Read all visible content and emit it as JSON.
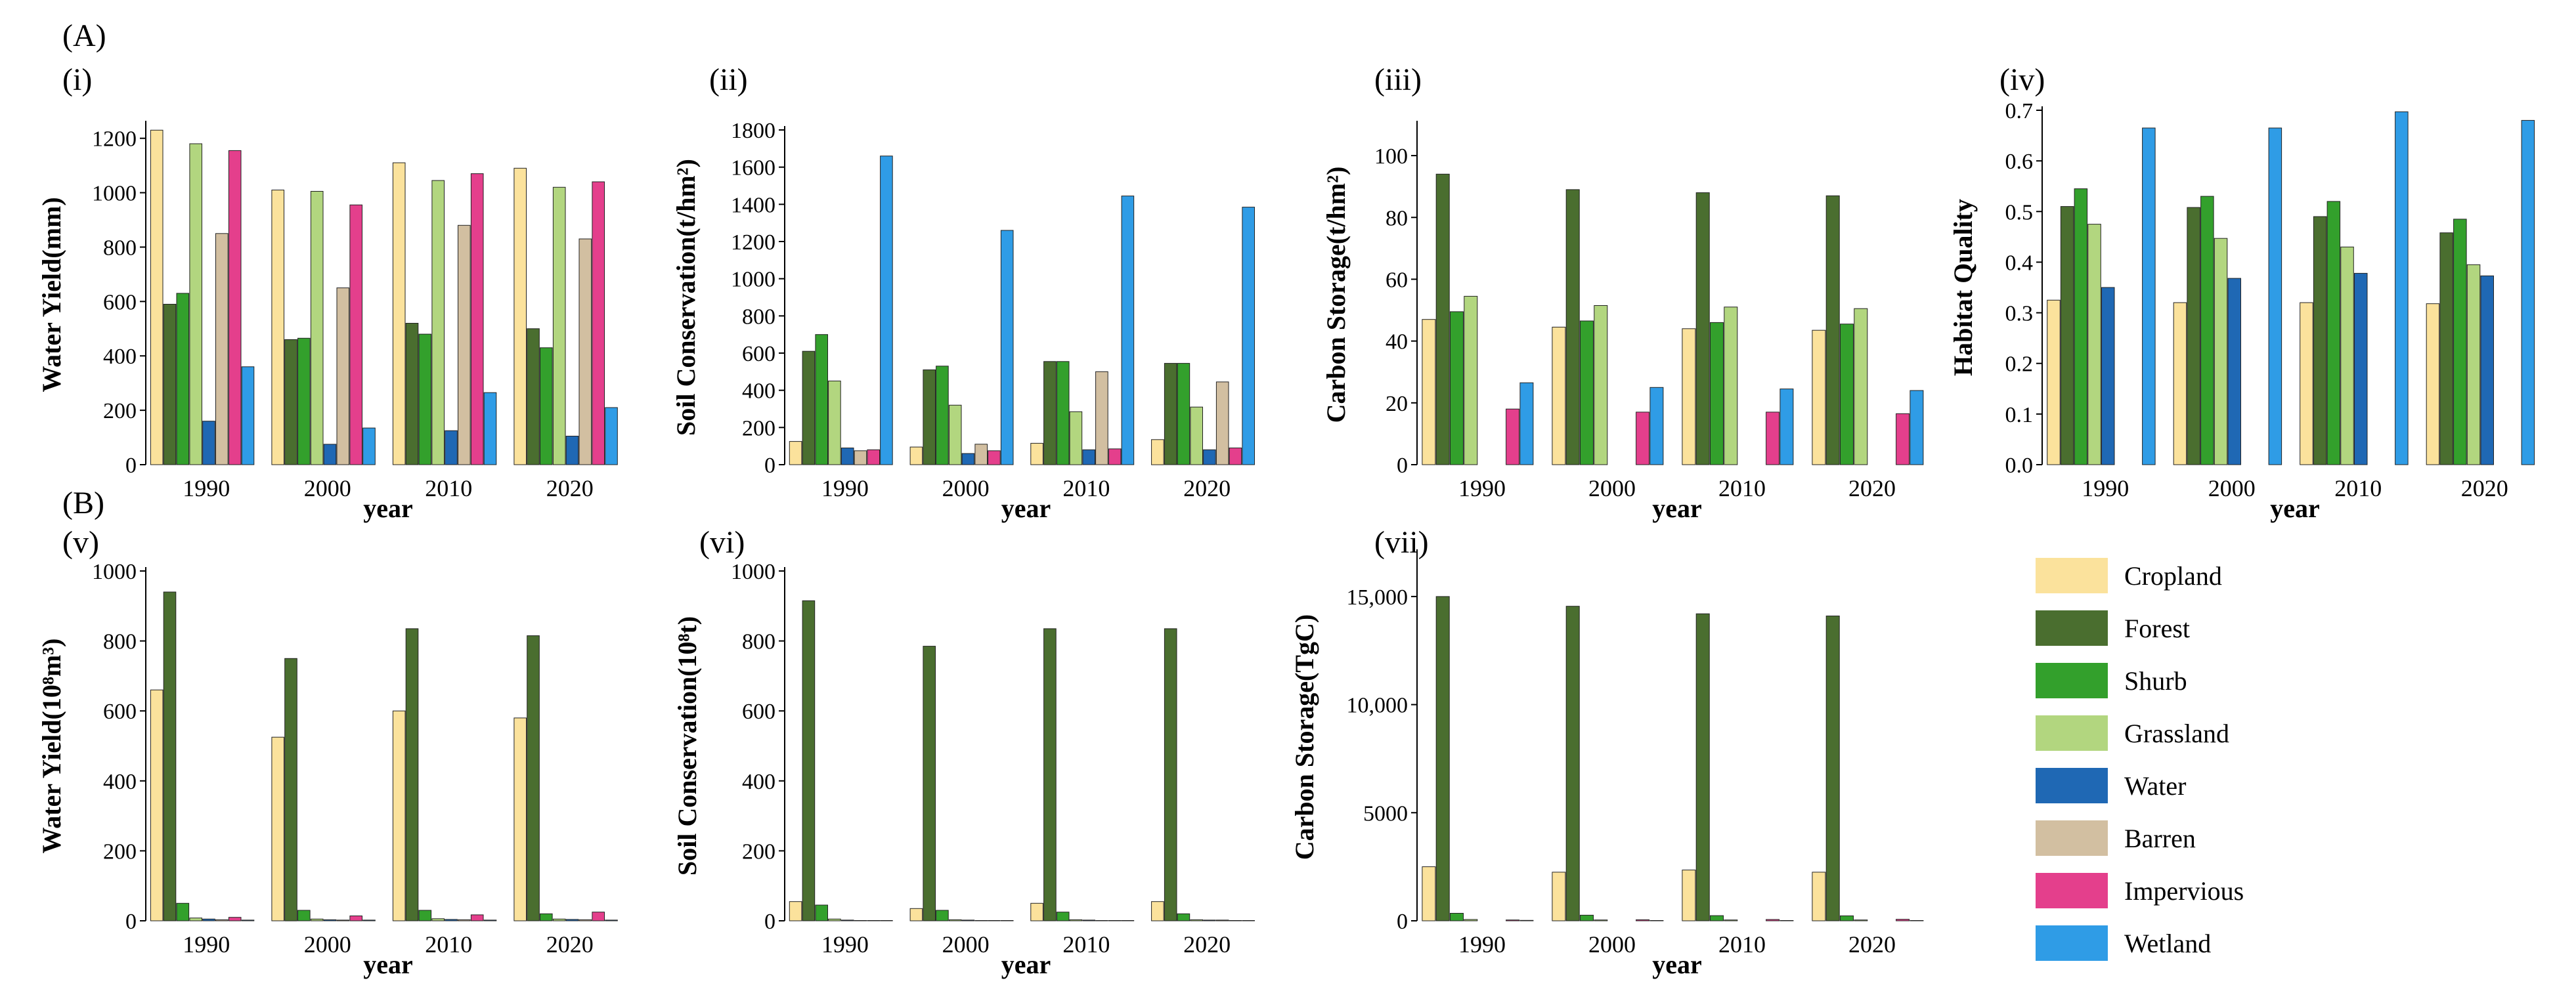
{
  "figure": {
    "section_a": "(A)",
    "section_b": "(B)"
  },
  "legend": [
    {
      "label": "Cropland",
      "color": "#fbe29c"
    },
    {
      "label": "Forest",
      "color": "#4a6e2f"
    },
    {
      "label": "Shurb",
      "color": "#33a02c"
    },
    {
      "label": "Grassland",
      "color": "#b2d67f"
    },
    {
      "label": "Water",
      "color": "#1f68b4"
    },
    {
      "label": "Barren",
      "color": "#d2bfa1"
    },
    {
      "label": "Impervious",
      "color": "#e43f8c"
    },
    {
      "label": "Wetland",
      "color": "#2f9ce6"
    }
  ],
  "chart_data": [
    {
      "id": "i",
      "label": "(i)",
      "type": "bar",
      "ylabel": "Water Yield(mm)",
      "xlabel": "year",
      "categories": [
        "1990",
        "2000",
        "2010",
        "2020"
      ],
      "ylim": [
        0,
        1250
      ],
      "yticks": [
        0,
        200,
        400,
        600,
        800,
        1000,
        1200
      ],
      "yticklabels": [
        "0",
        "200",
        "400",
        "600",
        "800",
        "1000",
        "1200"
      ],
      "series": [
        {
          "name": "Cropland",
          "values": [
            1230,
            1010,
            1110,
            1090
          ]
        },
        {
          "name": "Forest",
          "values": [
            590,
            460,
            520,
            500
          ]
        },
        {
          "name": "Shurb",
          "values": [
            630,
            465,
            480,
            430
          ]
        },
        {
          "name": "Grassland",
          "values": [
            1180,
            1005,
            1045,
            1020
          ]
        },
        {
          "name": "Water",
          "values": [
            160,
            75,
            125,
            105
          ]
        },
        {
          "name": "Barren",
          "values": [
            850,
            650,
            880,
            830
          ]
        },
        {
          "name": "Impervious",
          "values": [
            1155,
            955,
            1070,
            1040
          ]
        },
        {
          "name": "Wetland",
          "values": [
            360,
            135,
            265,
            210
          ]
        }
      ]
    },
    {
      "id": "ii",
      "label": "(ii)",
      "type": "bar",
      "ylabel": "Soil Conservation(t/hm²)",
      "xlabel": "year",
      "categories": [
        "1990",
        "2000",
        "2010",
        "2020"
      ],
      "ylim": [
        0,
        1800
      ],
      "yticks": [
        0,
        200,
        400,
        600,
        800,
        1000,
        1200,
        1400,
        1600,
        1800
      ],
      "yticklabels": [
        "0",
        "200",
        "400",
        "600",
        "800",
        "1000",
        "1200",
        "1400",
        "1600",
        "1800"
      ],
      "series": [
        {
          "name": "Cropland",
          "values": [
            125,
            95,
            115,
            135
          ]
        },
        {
          "name": "Forest",
          "values": [
            610,
            510,
            555,
            545
          ]
        },
        {
          "name": "Shurb",
          "values": [
            700,
            530,
            555,
            545
          ]
        },
        {
          "name": "Grassland",
          "values": [
            450,
            320,
            285,
            310
          ]
        },
        {
          "name": "Water",
          "values": [
            90,
            60,
            80,
            80
          ]
        },
        {
          "name": "Barren",
          "values": [
            75,
            110,
            500,
            445
          ]
        },
        {
          "name": "Impervious",
          "values": [
            80,
            75,
            85,
            90
          ]
        },
        {
          "name": "Wetland",
          "values": [
            1660,
            1260,
            1445,
            1385
          ]
        }
      ]
    },
    {
      "id": "iii",
      "label": "(iii)",
      "type": "bar",
      "ylabel": "Carbon Storage(t/hm²)",
      "xlabel": "year",
      "categories": [
        "1990",
        "2000",
        "2010",
        "2020"
      ],
      "ylim": [
        0,
        110
      ],
      "yticks": [
        0,
        20,
        40,
        60,
        80,
        100
      ],
      "yticklabels": [
        "0",
        "20",
        "40",
        "60",
        "80",
        "100"
      ],
      "series": [
        {
          "name": "Cropland",
          "values": [
            47,
            44.5,
            44,
            43.5
          ]
        },
        {
          "name": "Forest",
          "values": [
            94,
            89,
            88,
            87
          ]
        },
        {
          "name": "Shurb",
          "values": [
            49.5,
            46.5,
            46,
            45.5
          ]
        },
        {
          "name": "Grassland",
          "values": [
            54.5,
            51.5,
            51,
            50.5
          ]
        },
        {
          "name": "Water",
          "values": [
            0,
            0,
            0,
            0
          ]
        },
        {
          "name": "Barren",
          "values": [
            0,
            0,
            0,
            0
          ]
        },
        {
          "name": "Impervious",
          "values": [
            18,
            17,
            17,
            16.5
          ]
        },
        {
          "name": "Wetland",
          "values": [
            26.5,
            25,
            24.5,
            24
          ]
        }
      ]
    },
    {
      "id": "iv",
      "label": "(iv)",
      "type": "bar",
      "ylabel": "Habitat Quality",
      "xlabel": "year",
      "categories": [
        "1990",
        "2000",
        "2010",
        "2020"
      ],
      "ylim": [
        0,
        0.7
      ],
      "yticks": [
        0,
        0.1,
        0.2,
        0.3,
        0.4,
        0.5,
        0.6,
        0.7
      ],
      "yticklabels": [
        "0.0",
        "0.1",
        "0.2",
        "0.3",
        "0.4",
        "0.5",
        "0.6",
        "0.7"
      ],
      "series": [
        {
          "name": "Cropland",
          "values": [
            0.325,
            0.32,
            0.32,
            0.318
          ]
        },
        {
          "name": "Forest",
          "values": [
            0.51,
            0.508,
            0.49,
            0.458
          ]
        },
        {
          "name": "Shurb",
          "values": [
            0.545,
            0.53,
            0.52,
            0.485
          ]
        },
        {
          "name": "Grassland",
          "values": [
            0.475,
            0.447,
            0.43,
            0.395
          ]
        },
        {
          "name": "Water",
          "values": [
            0.35,
            0.368,
            0.378,
            0.373
          ]
        },
        {
          "name": "Barren",
          "values": [
            0,
            0,
            0,
            0
          ]
        },
        {
          "name": "Impervious",
          "values": [
            0,
            0,
            0,
            0
          ]
        },
        {
          "name": "Wetland",
          "values": [
            0.665,
            0.665,
            0.697,
            0.68
          ]
        }
      ]
    },
    {
      "id": "v",
      "label": "(v)",
      "type": "bar",
      "ylabel": "Water Yield(10⁸m³)",
      "xlabel": "year",
      "categories": [
        "1990",
        "2000",
        "2010",
        "2020"
      ],
      "ylim": [
        0,
        1000
      ],
      "yticks": [
        0,
        200,
        400,
        600,
        800,
        1000
      ],
      "yticklabels": [
        "0",
        "200",
        "400",
        "600",
        "800",
        "1000"
      ],
      "series": [
        {
          "name": "Cropland",
          "values": [
            660,
            525,
            600,
            580
          ]
        },
        {
          "name": "Forest",
          "values": [
            940,
            750,
            835,
            815
          ]
        },
        {
          "name": "Shurb",
          "values": [
            50,
            30,
            30,
            20
          ]
        },
        {
          "name": "Grassland",
          "values": [
            8,
            5,
            6,
            5
          ]
        },
        {
          "name": "Water",
          "values": [
            5,
            3,
            4,
            4
          ]
        },
        {
          "name": "Barren",
          "values": [
            3,
            2,
            3,
            3
          ]
        },
        {
          "name": "Impervious",
          "values": [
            10,
            14,
            17,
            25
          ]
        },
        {
          "name": "Wetland",
          "values": [
            2,
            2,
            2,
            2
          ]
        }
      ]
    },
    {
      "id": "vi",
      "label": "(vi)",
      "type": "bar",
      "ylabel": "Soil Conservation(10⁸t)",
      "xlabel": "year",
      "categories": [
        "1990",
        "2000",
        "2010",
        "2020"
      ],
      "ylim": [
        0,
        1000
      ],
      "yticks": [
        0,
        200,
        400,
        600,
        800,
        1000
      ],
      "yticklabels": [
        "0",
        "200",
        "400",
        "600",
        "800",
        "1000"
      ],
      "series": [
        {
          "name": "Cropland",
          "values": [
            55,
            35,
            50,
            55
          ]
        },
        {
          "name": "Forest",
          "values": [
            915,
            785,
            835,
            835
          ]
        },
        {
          "name": "Shurb",
          "values": [
            45,
            30,
            25,
            20
          ]
        },
        {
          "name": "Grassland",
          "values": [
            5,
            3,
            3,
            3
          ]
        },
        {
          "name": "Water",
          "values": [
            2,
            2,
            2,
            2
          ]
        },
        {
          "name": "Barren",
          "values": [
            1,
            1,
            1,
            2
          ]
        },
        {
          "name": "Impervious",
          "values": [
            1,
            1,
            1,
            1
          ]
        },
        {
          "name": "Wetland",
          "values": [
            1,
            1,
            1,
            1
          ]
        }
      ]
    },
    {
      "id": "vii",
      "label": "(vii)",
      "type": "bar",
      "ylabel": "Carbon Storage(TgC)",
      "xlabel": "year",
      "categories": [
        "1990",
        "2000",
        "2010",
        "2020"
      ],
      "ylim": [
        0,
        17000
      ],
      "yticks": [
        0,
        5000,
        10000,
        15000
      ],
      "yticklabels": [
        "0",
        "5000",
        "10,000",
        "15,000"
      ],
      "series": [
        {
          "name": "Cropland",
          "values": [
            2500,
            2250,
            2350,
            2250
          ]
        },
        {
          "name": "Forest",
          "values": [
            15000,
            14550,
            14200,
            14100
          ]
        },
        {
          "name": "Shurb",
          "values": [
            350,
            260,
            240,
            230
          ]
        },
        {
          "name": "Grassland",
          "values": [
            60,
            40,
            40,
            40
          ]
        },
        {
          "name": "Water",
          "values": [
            0,
            0,
            0,
            0
          ]
        },
        {
          "name": "Barren",
          "values": [
            0,
            0,
            0,
            0
          ]
        },
        {
          "name": "Impervious",
          "values": [
            40,
            50,
            60,
            70
          ]
        },
        {
          "name": "Wetland",
          "values": [
            20,
            15,
            15,
            15
          ]
        }
      ]
    }
  ]
}
